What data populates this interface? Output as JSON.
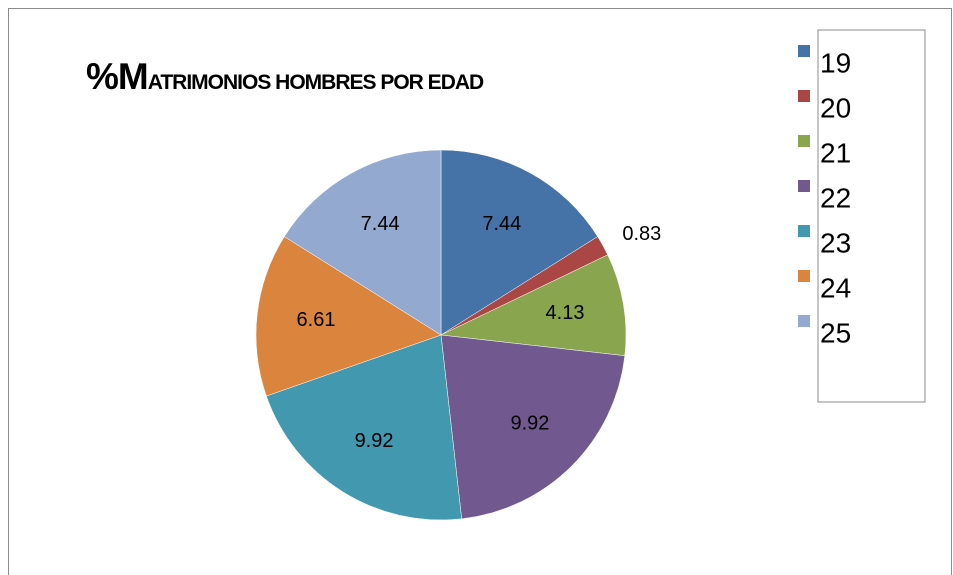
{
  "chart_data": {
    "type": "pie",
    "title": "%MATRIMONIOS HOMBRES POR EDAD",
    "categories": [
      "19",
      "20",
      "21",
      "22",
      "23",
      "24",
      "25"
    ],
    "values": [
      7.44,
      0.83,
      4.13,
      9.92,
      9.92,
      6.61,
      7.44
    ],
    "colors": [
      "#4572a7",
      "#aa4643",
      "#89a54e",
      "#71588f",
      "#4198af",
      "#db843d",
      "#93a9cf"
    ],
    "legend": "right"
  }
}
